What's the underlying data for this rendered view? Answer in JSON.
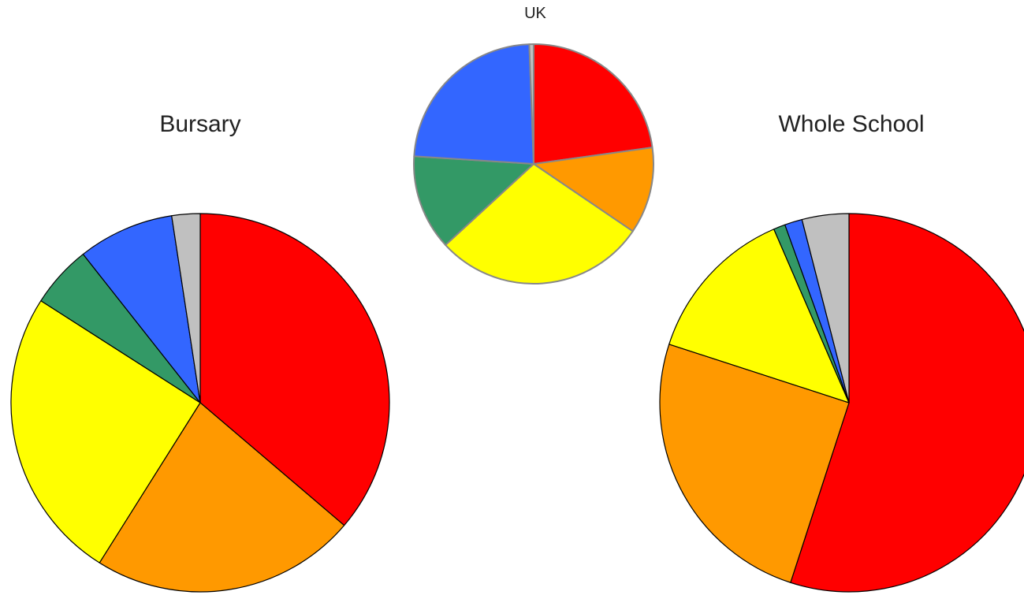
{
  "chart_data": [
    {
      "type": "pie",
      "title": "Bursary",
      "values": [
        37.5,
        23.5,
        26.0,
        5.5,
        8.5,
        2.5
      ],
      "colors": [
        "#ff0000",
        "#ff9900",
        "#ffff00",
        "#339966",
        "#3366ff",
        "#c0c0c0"
      ],
      "start": "12 o'clock",
      "direction": "clockwise"
    },
    {
      "type": "pie",
      "title": "UK",
      "values": [
        19.5,
        10.0,
        24.5,
        11.0,
        20.0,
        0.5
      ],
      "colors": [
        "#ff0000",
        "#ff9900",
        "#ffff00",
        "#339966",
        "#3366ff",
        "#c0c0c0"
      ],
      "start": "12 o'clock",
      "direction": "clockwise"
    },
    {
      "type": "pie",
      "title": "Whole School",
      "values": [
        55.0,
        25.0,
        13.5,
        1.0,
        1.5,
        4.0
      ],
      "colors": [
        "#ff0000",
        "#ff9900",
        "#ffff00",
        "#339966",
        "#3366ff",
        "#c0c0c0"
      ],
      "start": "12 o'clock",
      "direction": "clockwise"
    }
  ]
}
